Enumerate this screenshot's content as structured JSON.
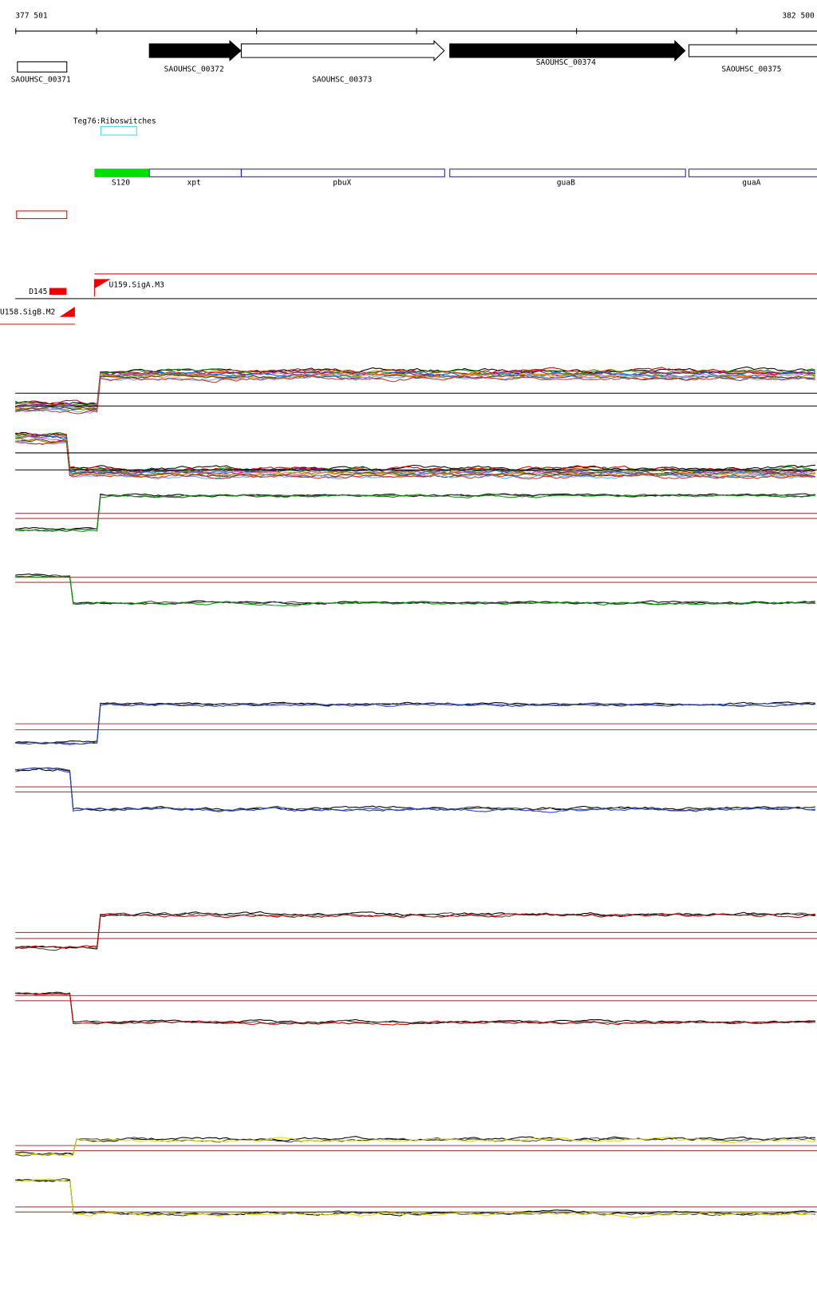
{
  "ruler": {
    "start": "377 501",
    "end": "382 500"
  },
  "genes": [
    "SAOUHSC_00371",
    "SAOUHSC_00372",
    "SAOUHSC_00373",
    "SAOUHSC_00374",
    "SAOUHSC_00375"
  ],
  "riboswitch": "Teg76:Riboswitches",
  "operon": [
    "S120",
    "xpt",
    "pbuX",
    "guaB",
    "guaA"
  ],
  "promoters": [
    "D145",
    "U159.SigA.M3",
    "U158.SigB.M2"
  ]
}
